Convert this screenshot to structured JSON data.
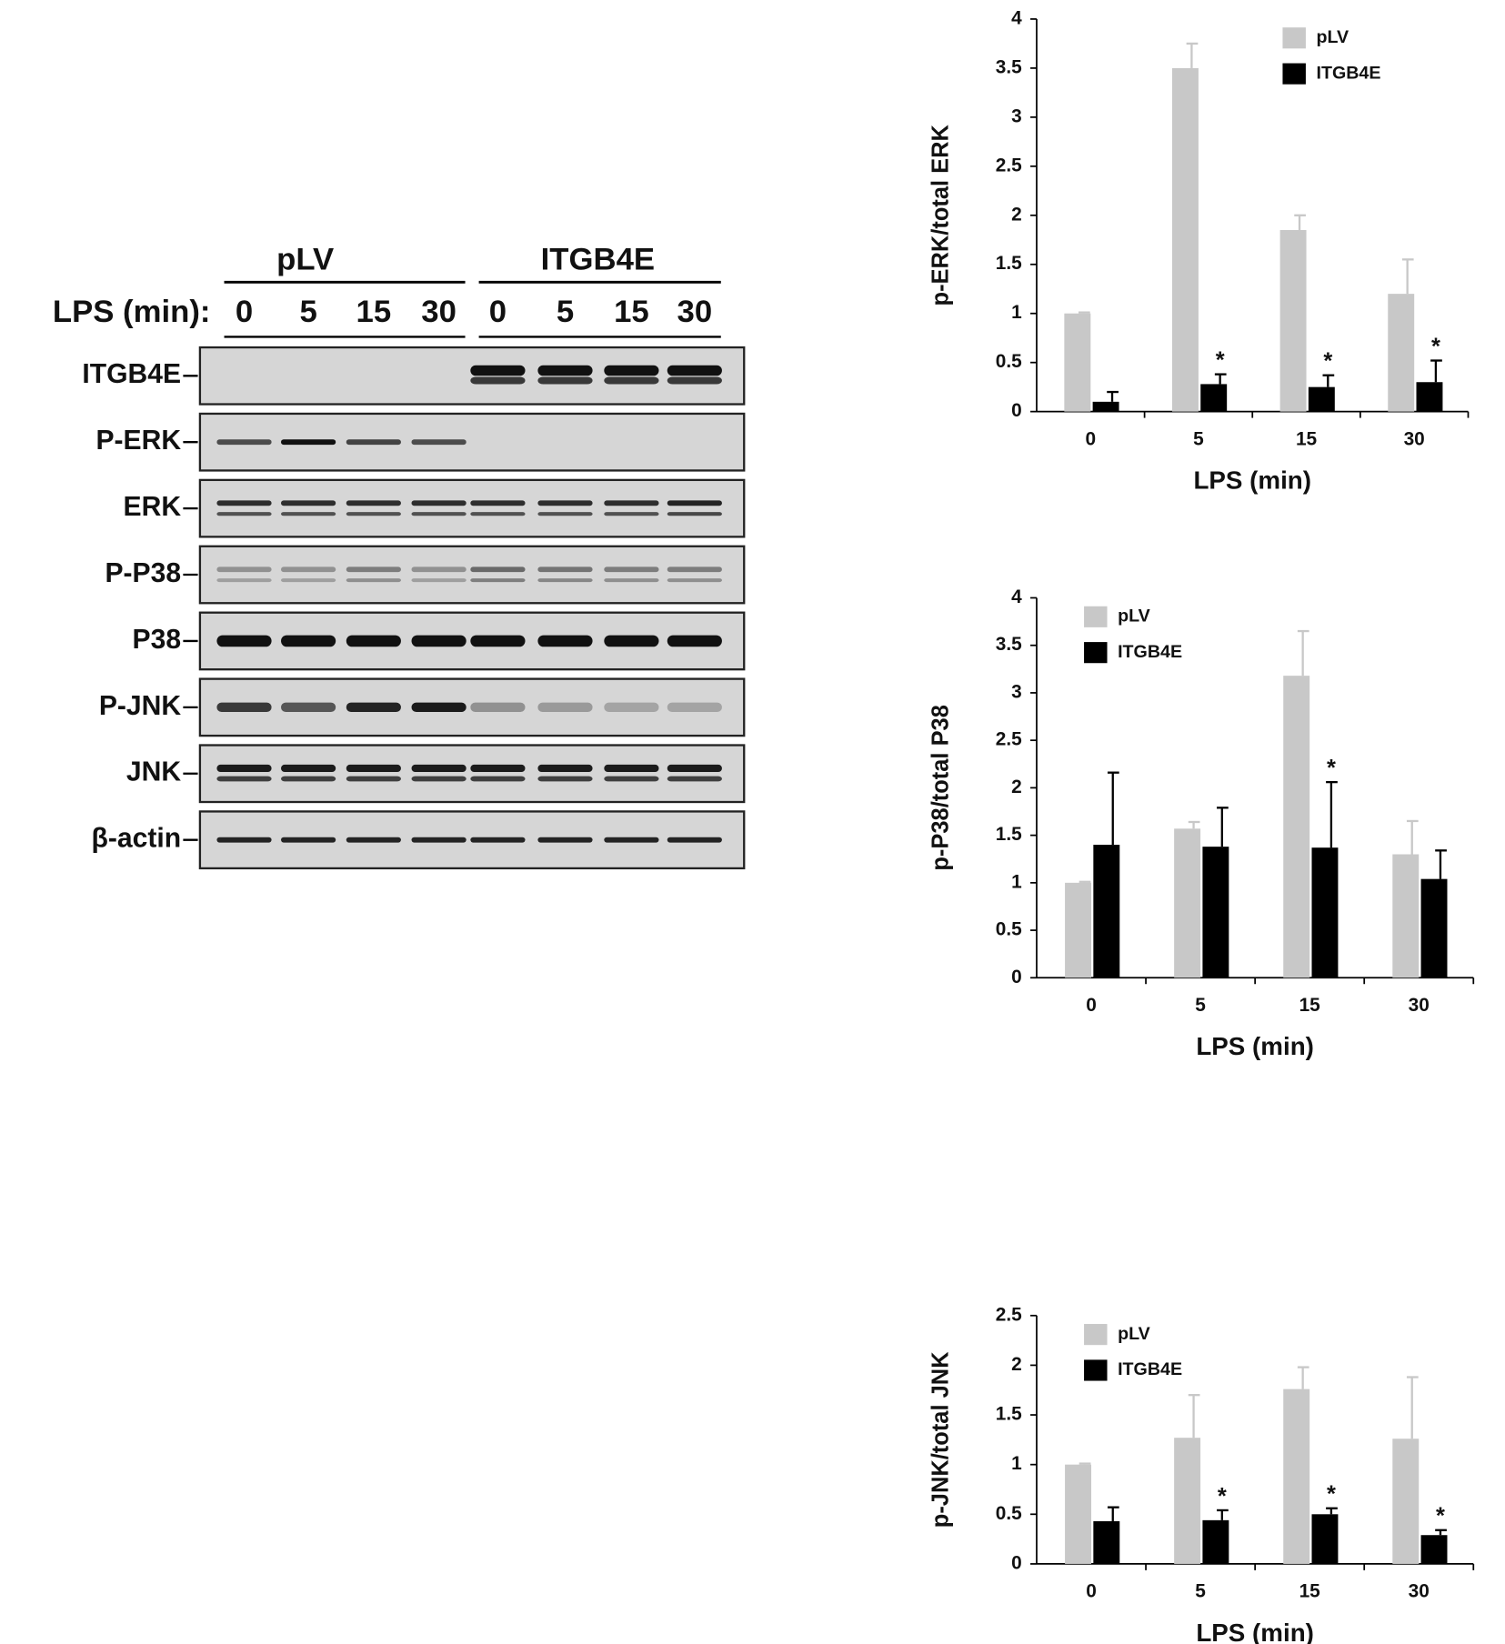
{
  "blot": {
    "groups": [
      "pLV",
      "ITGB4E"
    ],
    "lps_label": "LPS (min):",
    "lanes": [
      "0",
      "5",
      "15",
      "30",
      "0",
      "5",
      "15",
      "30"
    ],
    "rows": [
      "ITGB4E",
      "P-ERK",
      "ERK",
      "P-P38",
      "P38",
      "P-JNK",
      "JNK",
      "β-actin"
    ]
  },
  "chart_data": [
    {
      "type": "bar",
      "ylabel": "p-ERK/total ERK",
      "xlabel": "LPS (min)",
      "categories": [
        "0",
        "5",
        "15",
        "30"
      ],
      "ylim": [
        0,
        4
      ],
      "yticks": [
        0,
        0.5,
        1,
        1.5,
        2,
        2.5,
        3,
        3.5,
        4
      ],
      "legend": "upper right",
      "series": [
        {
          "name": "pLV",
          "color": "#c8c8c8",
          "values": [
            1,
            3.5,
            1.85,
            1.2
          ],
          "errors": [
            0.01,
            0.25,
            0.15,
            0.35
          ]
        },
        {
          "name": "ITGB4E",
          "color": "#000000",
          "values": [
            0.1,
            0.28,
            0.25,
            0.3
          ],
          "errors": [
            0.1,
            0.1,
            0.12,
            0.22
          ],
          "markers": [
            null,
            "*",
            "*",
            "*"
          ]
        }
      ]
    },
    {
      "type": "bar",
      "ylabel": "p-P38/total P38",
      "xlabel": "LPS (min)",
      "categories": [
        "0",
        "5",
        "15",
        "30"
      ],
      "ylim": [
        0,
        4
      ],
      "yticks": [
        0,
        0.5,
        1,
        1.5,
        2,
        2.5,
        3,
        3.5,
        4
      ],
      "legend": "upper left",
      "series": [
        {
          "name": "pLV",
          "color": "#c8c8c8",
          "values": [
            1,
            1.57,
            3.18,
            1.3
          ],
          "errors": [
            0.01,
            0.07,
            0.47,
            0.35
          ]
        },
        {
          "name": "ITGB4E",
          "color": "#000000",
          "values": [
            1.4,
            1.38,
            1.37,
            1.04
          ],
          "errors": [
            0.76,
            0.41,
            0.69,
            0.3
          ],
          "markers": [
            null,
            null,
            "*",
            null
          ]
        }
      ]
    },
    {
      "type": "bar",
      "ylabel": "p-JNK/total JNK",
      "xlabel": "LPS (min)",
      "categories": [
        "0",
        "5",
        "15",
        "30"
      ],
      "ylim": [
        0,
        2.5
      ],
      "yticks": [
        0,
        0.5,
        1,
        1.5,
        2,
        2.5
      ],
      "legend": "upper left",
      "series": [
        {
          "name": "pLV",
          "color": "#c8c8c8",
          "values": [
            1,
            1.27,
            1.76,
            1.26
          ],
          "errors": [
            0.01,
            0.43,
            0.22,
            0.62
          ]
        },
        {
          "name": "ITGB4E",
          "color": "#000000",
          "values": [
            0.43,
            0.44,
            0.5,
            0.29
          ],
          "errors": [
            0.14,
            0.1,
            0.06,
            0.05
          ],
          "markers": [
            null,
            "*",
            "*",
            "*"
          ]
        }
      ]
    }
  ]
}
